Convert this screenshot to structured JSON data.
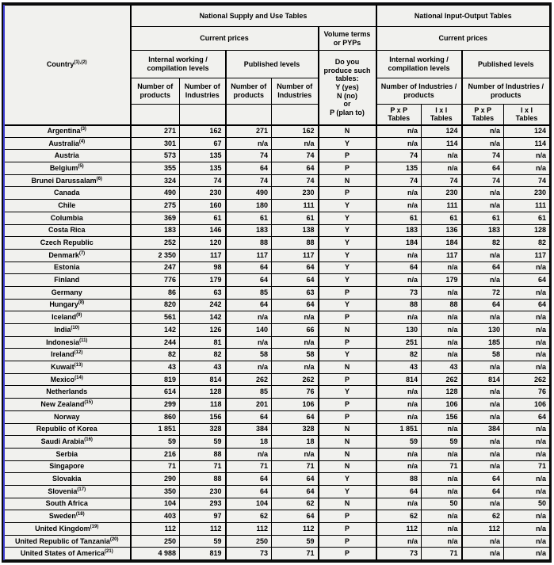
{
  "header": {
    "country_label": "Country",
    "country_sup": "(1),(2)",
    "supply_use_group": "National Supply and Use Tables",
    "input_output_group": "National Input-Output Tables",
    "current_prices_su": "Current prices",
    "current_prices_io": "Current prices",
    "volume_terms_lines": [
      "Volume terms",
      "or PYPs"
    ],
    "internal_working_su": "Internal working / compilation levels",
    "published_levels_su": "Published levels",
    "internal_working_io": "Internal working / compilation levels",
    "published_levels_io": "Published levels",
    "produce_lines": [
      "Do you",
      "produce such",
      "tables:",
      "Y (yes)",
      "N (no)",
      "or",
      "P (plan to)"
    ],
    "num_products": "Number of products",
    "num_industries": "Number of Industries",
    "num_ind_prod": "Number of Industries / products",
    "pxp_lines": [
      "P x P",
      "Tables"
    ],
    "ixi_lines": [
      "I x I",
      "Tables"
    ]
  },
  "accent_colors": {
    "border": "#000000",
    "left_edge_accent": "#3c3cd2",
    "cell_background": "#f1f1ee"
  },
  "rows": [
    {
      "country": "Argentina",
      "sup": "(3)",
      "values": [
        "271",
        "162",
        "271",
        "162",
        "N",
        "n/a",
        "124",
        "n/a",
        "124"
      ]
    },
    {
      "country": "Australia",
      "sup": "(4)",
      "values": [
        "301",
        "67",
        "n/a",
        "n/a",
        "Y",
        "n/a",
        "114",
        "n/a",
        "114"
      ]
    },
    {
      "country": "Austria",
      "sup": "",
      "values": [
        "573",
        "135",
        "74",
        "74",
        "P",
        "74",
        "n/a",
        "74",
        "n/a"
      ]
    },
    {
      "country": "Belgium",
      "sup": "(5)",
      "values": [
        "355",
        "135",
        "64",
        "64",
        "P",
        "135",
        "n/a",
        "64",
        "n/a"
      ]
    },
    {
      "country": "Brunei Darussalam",
      "sup": "(6)",
      "values": [
        "324",
        "74",
        "74",
        "74",
        "N",
        "74",
        "74",
        "74",
        "74"
      ]
    },
    {
      "country": "Canada",
      "sup": "",
      "values": [
        "490",
        "230",
        "490",
        "230",
        "P",
        "n/a",
        "230",
        "n/a",
        "230"
      ]
    },
    {
      "country": "Chile",
      "sup": "",
      "values": [
        "275",
        "160",
        "180",
        "111",
        "Y",
        "n/a",
        "111",
        "n/a",
        "111"
      ]
    },
    {
      "country": "Columbia",
      "sup": "",
      "values": [
        "369",
        "61",
        "61",
        "61",
        "Y",
        "61",
        "61",
        "61",
        "61"
      ]
    },
    {
      "country": "Costa Rica",
      "sup": "",
      "values": [
        "183",
        "146",
        "183",
        "138",
        "Y",
        "183",
        "136",
        "183",
        "128"
      ]
    },
    {
      "country": "Czech Republic",
      "sup": "",
      "values": [
        "252",
        "120",
        "88",
        "88",
        "Y",
        "184",
        "184",
        "82",
        "82"
      ]
    },
    {
      "country": "Denmark",
      "sup": "(7)",
      "values": [
        "2 350",
        "117",
        "117",
        "117",
        "Y",
        "n/a",
        "117",
        "n/a",
        "117"
      ]
    },
    {
      "country": "Estonia",
      "sup": "",
      "values": [
        "247",
        "98",
        "64",
        "64",
        "Y",
        "64",
        "n/a",
        "64",
        "n/a"
      ]
    },
    {
      "country": "Finland",
      "sup": "",
      "values": [
        "776",
        "179",
        "64",
        "64",
        "Y",
        "n/a",
        "179",
        "n/a",
        "64"
      ]
    },
    {
      "country": "Germany",
      "sup": "",
      "values": [
        "86",
        "63",
        "85",
        "63",
        "P",
        "73",
        "n/a",
        "72",
        "n/a"
      ]
    },
    {
      "country": "Hungary",
      "sup": "(8)",
      "values": [
        "820",
        "242",
        "64",
        "64",
        "Y",
        "88",
        "88",
        "64",
        "64"
      ]
    },
    {
      "country": "Iceland",
      "sup": "(9)",
      "values": [
        "561",
        "142",
        "n/a",
        "n/a",
        "P",
        "n/a",
        "n/a",
        "n/a",
        "n/a"
      ]
    },
    {
      "country": "India",
      "sup": "(10)",
      "values": [
        "142",
        "126",
        "140",
        "66",
        "N",
        "130",
        "n/a",
        "130",
        "n/a"
      ]
    },
    {
      "country": "Indonesia",
      "sup": "(11)",
      "values": [
        "244",
        "81",
        "n/a",
        "n/a",
        "P",
        "251",
        "n/a",
        "185",
        "n/a"
      ]
    },
    {
      "country": "Ireland",
      "sup": "(12)",
      "values": [
        "82",
        "82",
        "58",
        "58",
        "Y",
        "82",
        "n/a",
        "58",
        "n/a"
      ]
    },
    {
      "country": "Kuwait",
      "sup": "(13)",
      "values": [
        "43",
        "43",
        "n/a",
        "n/a",
        "N",
        "43",
        "43",
        "n/a",
        "n/a"
      ]
    },
    {
      "country": "Mexico",
      "sup": "(14)",
      "values": [
        "819",
        "814",
        "262",
        "262",
        "P",
        "814",
        "262",
        "814",
        "262"
      ]
    },
    {
      "country": "Netherlands",
      "sup": "",
      "values": [
        "614",
        "128",
        "85",
        "76",
        "Y",
        "n/a",
        "128",
        "n/a",
        "76"
      ]
    },
    {
      "country": "New Zealand",
      "sup": "(15)",
      "values": [
        "299",
        "118",
        "201",
        "106",
        "P",
        "n/a",
        "106",
        "n/a",
        "106"
      ]
    },
    {
      "country": "Norway",
      "sup": "",
      "values": [
        "860",
        "156",
        "64",
        "64",
        "P",
        "n/a",
        "156",
        "n/a",
        "64"
      ]
    },
    {
      "country": "Republic of Korea",
      "sup": "",
      "values": [
        "1 851",
        "328",
        "384",
        "328",
        "N",
        "1 851",
        "n/a",
        "384",
        "n/a"
      ]
    },
    {
      "country": "Saudi Arabia",
      "sup": "(16)",
      "values": [
        "59",
        "59",
        "18",
        "18",
        "N",
        "59",
        "59",
        "n/a",
        "n/a"
      ]
    },
    {
      "country": "Serbia",
      "sup": "",
      "values": [
        "216",
        "88",
        "n/a",
        "n/a",
        "N",
        "n/a",
        "n/a",
        "n/a",
        "n/a"
      ]
    },
    {
      "country": "Singapore",
      "sup": "",
      "values": [
        "71",
        "71",
        "71",
        "71",
        "N",
        "n/a",
        "71",
        "n/a",
        "71"
      ]
    },
    {
      "country": "Slovakia",
      "sup": "",
      "values": [
        "290",
        "88",
        "64",
        "64",
        "Y",
        "88",
        "n/a",
        "64",
        "n/a"
      ]
    },
    {
      "country": "Slovenia",
      "sup": "(17)",
      "values": [
        "350",
        "230",
        "64",
        "64",
        "Y",
        "64",
        "n/a",
        "64",
        "n/a"
      ]
    },
    {
      "country": "South Africa",
      "sup": "",
      "values": [
        "104",
        "293",
        "104",
        "62",
        "N",
        "n/a",
        "50",
        "n/a",
        "50"
      ]
    },
    {
      "country": "Sweden",
      "sup": "(18)",
      "values": [
        "403",
        "97",
        "62",
        "64",
        "P",
        "62",
        "n/a",
        "62",
        "n/a"
      ]
    },
    {
      "country": "United Kingdom",
      "sup": "(19)",
      "values": [
        "112",
        "112",
        "112",
        "112",
        "P",
        "112",
        "n/a",
        "112",
        "n/a"
      ]
    },
    {
      "country": "United Republic of Tanzania",
      "sup": "(20)",
      "values": [
        "250",
        "59",
        "250",
        "59",
        "P",
        "n/a",
        "n/a",
        "n/a",
        "n/a"
      ]
    },
    {
      "country": "United States of America",
      "sup": "(21)",
      "values": [
        "4 988",
        "819",
        "73",
        "71",
        "P",
        "73",
        "71",
        "n/a",
        "n/a"
      ]
    }
  ]
}
